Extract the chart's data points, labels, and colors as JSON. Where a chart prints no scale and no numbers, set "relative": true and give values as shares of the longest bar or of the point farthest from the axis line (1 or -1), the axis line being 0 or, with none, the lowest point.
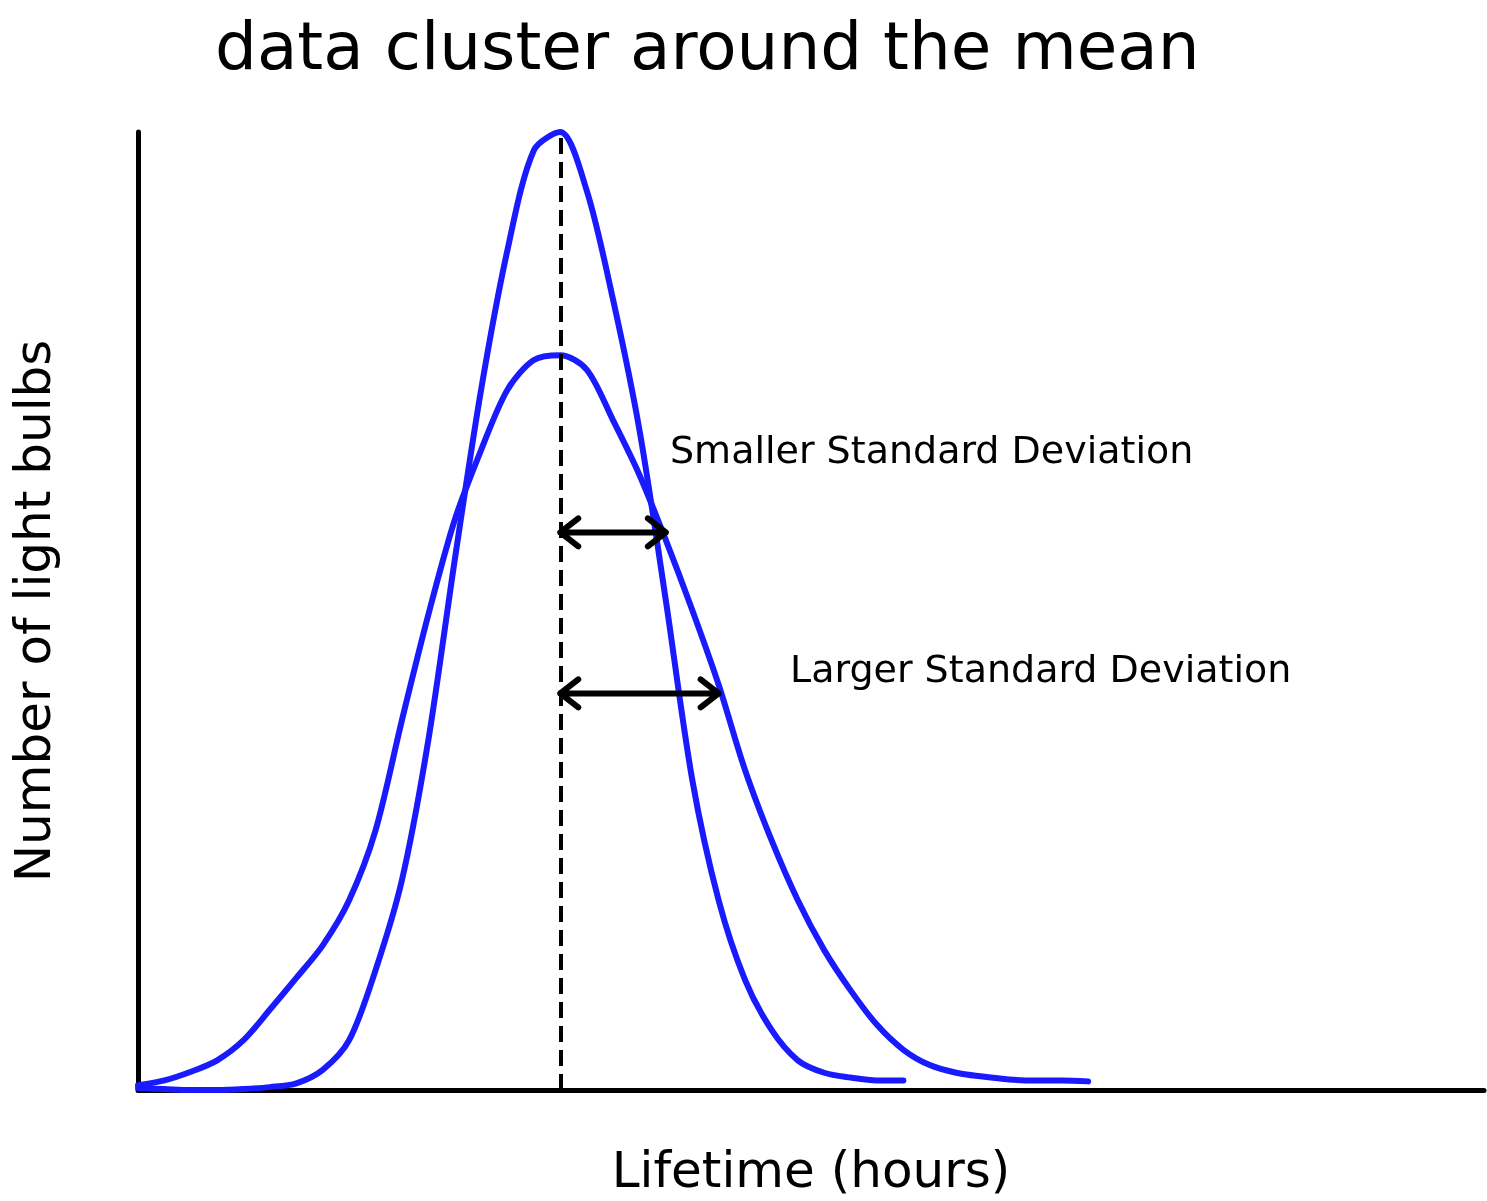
{
  "chart_data": {
    "type": "line",
    "title": "data cluster around the mean",
    "xlabel": "Lifetime (hours)",
    "ylabel": "Number of light bulbs",
    "relative": true,
    "marker": "none",
    "line_style": "solid",
    "categories": [
      null,
      null,
      null,
      null,
      null,
      null,
      null,
      null,
      null,
      null,
      null,
      null,
      null,
      null,
      null,
      null,
      null,
      null,
      null,
      null,
      null,
      null,
      null,
      null,
      null,
      null,
      null,
      null,
      null,
      null,
      null,
      null,
      null,
      null,
      null,
      null,
      null,
      null,
      null,
      null,
      null,
      null,
      null,
      null,
      null,
      null,
      null,
      null,
      null,
      null,
      null,
      null
    ],
    "series": [
      {
        "color": "#1a1aff",
        "values": [
          0.002,
          0.001,
          0,
          0,
          0.001,
          0.003,
          0.007,
          0.021,
          0.052,
          0.125,
          0.219,
          0.365,
          0.553,
          0.731,
          0.877,
          0.981,
          1,
          0.939,
          0.825,
          0.689,
          0.511,
          0.324,
          0.198,
          0.115,
          0.063,
          0.031,
          0.018,
          0.013,
          0.01,
          0.01,
          null,
          null,
          null,
          null,
          null,
          null,
          null,
          null,
          null,
          null,
          null,
          null,
          null,
          null,
          null,
          null,
          null,
          null,
          null,
          null,
          null,
          null
        ]
      },
      {
        "color": "#1a1aff",
        "values": [
          0.005,
          0.01,
          0.019,
          0.031,
          0.052,
          0.084,
          0.117,
          0.151,
          0.198,
          0.271,
          0.386,
          0.496,
          0.595,
          0.668,
          0.731,
          0.762,
          0.767,
          0.752,
          0.699,
          0.642,
          0.574,
          0.501,
          0.423,
          0.334,
          0.261,
          0.198,
          0.146,
          0.104,
          0.068,
          0.042,
          0.026,
          0.018,
          0.014,
          0.011,
          0.01,
          0.01,
          0.009,
          null,
          null,
          null,
          null,
          null,
          null,
          null,
          null,
          null,
          null,
          null,
          null,
          null,
          null,
          null
        ]
      }
    ],
    "annotations": [
      "Smaller Standard Deviation",
      "Larger Standard Deviation"
    ]
  }
}
